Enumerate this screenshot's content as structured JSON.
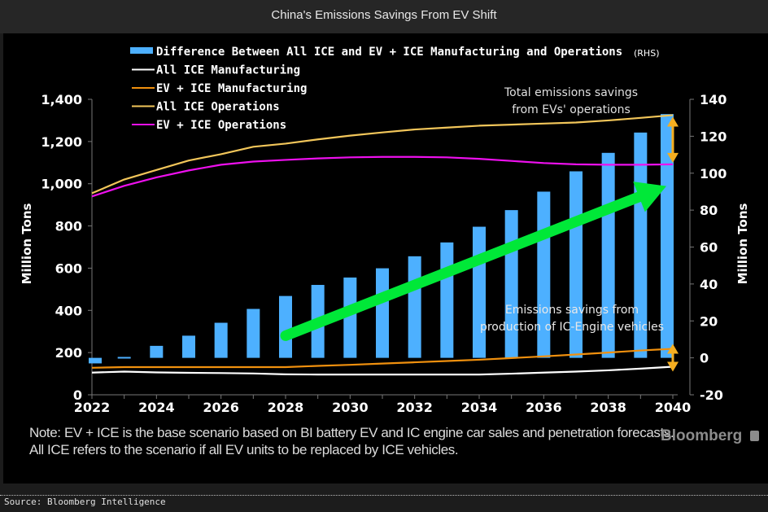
{
  "window": {
    "title": "China's Emissions Savings From EV Shift"
  },
  "footer": {
    "source": "Source: Bloomberg Intelligence",
    "brand": "Bloomberg",
    "brand_icon": "bloomberg-terminal-icon"
  },
  "note": "Note: EV + ICE is the base scenario based on BI battery EV and IC engine car sales and penetration forecasts. All ICE refers to the scenario if all EV units to be replaced by ICE vehicles.",
  "chart_data": {
    "type": "bar+line",
    "title": "China's Emissions Savings From EV Shift",
    "xlabel": "",
    "ylabel_left": "Million Tons",
    "ylabel_right": "Million Tons",
    "ylim_left": [
      0,
      1400
    ],
    "ylim_right": [
      -20,
      140
    ],
    "yticks_left": [
      "0",
      "200",
      "400",
      "600",
      "800",
      "1,000",
      "1,200",
      "1,400"
    ],
    "yticks_left_values": [
      0,
      200,
      400,
      600,
      800,
      1000,
      1200,
      1400
    ],
    "yticks_right": [
      "-20",
      "0",
      "20",
      "40",
      "60",
      "80",
      "100",
      "120",
      "140"
    ],
    "yticks_right_values": [
      -20,
      0,
      20,
      40,
      60,
      80,
      100,
      120,
      140
    ],
    "x": [
      2022,
      2023,
      2024,
      2025,
      2026,
      2027,
      2028,
      2029,
      2030,
      2031,
      2032,
      2033,
      2034,
      2035,
      2036,
      2037,
      2038,
      2039,
      2040
    ],
    "xtick_labels": [
      "2022",
      "2024",
      "2026",
      "2028",
      "2030",
      "2032",
      "2034",
      "2036",
      "2038",
      "2040"
    ],
    "legend_position": "top-left",
    "grid": false,
    "series": [
      {
        "name": "Difference Between All ICE and EV + ICE Manufacturing and Operations",
        "suffix": "(RHS)",
        "type": "bar",
        "axis": "right",
        "color": "#4db0ff",
        "values": [
          -3,
          0.5,
          6.5,
          12,
          19,
          26.5,
          33.5,
          39.5,
          43.5,
          48.5,
          55,
          62.5,
          71,
          80,
          90,
          101,
          111,
          122,
          132
        ]
      },
      {
        "name": "All ICE Manufacturing",
        "type": "line",
        "axis": "left",
        "color": "#ffffff",
        "values": [
          105,
          110,
          106,
          104,
          103,
          101,
          97,
          96,
          96,
          96,
          96,
          96,
          96,
          100,
          105,
          110,
          116,
          124,
          133
        ]
      },
      {
        "name": "EV + ICE Manufacturing",
        "type": "line",
        "axis": "left",
        "color": "#f0900e",
        "values": [
          128,
          131,
          131,
          131,
          131,
          131,
          131,
          137,
          142,
          148,
          154,
          160,
          166,
          174,
          182,
          191,
          200,
          210,
          218
        ]
      },
      {
        "name": "All ICE Operations",
        "type": "line",
        "axis": "left",
        "color": "#f2c65a",
        "values": [
          955,
          1020,
          1065,
          1110,
          1140,
          1175,
          1190,
          1210,
          1228,
          1243,
          1257,
          1266,
          1275,
          1280,
          1285,
          1290,
          1300,
          1312,
          1325
        ]
      },
      {
        "name": "EV + ICE Operations",
        "type": "line",
        "axis": "left",
        "color": "#ee10ee",
        "values": [
          940,
          990,
          1030,
          1063,
          1090,
          1105,
          1113,
          1120,
          1125,
          1127,
          1127,
          1125,
          1118,
          1108,
          1098,
          1092,
          1090,
          1090,
          1092
        ]
      }
    ],
    "annotations": [
      {
        "text_lines": [
          "Total emissions savings",
          "from EVs' operations"
        ],
        "type": "double-arrow",
        "color": "#f5ae20",
        "at_x": 2040,
        "between": [
          "All ICE Operations",
          "EV + ICE Operations"
        ]
      },
      {
        "text_lines": [
          "Emissions savings from",
          "production of IC-Engine vehicles"
        ],
        "type": "double-arrow",
        "color": "#f5ae20",
        "at_x": 2040,
        "between": [
          "EV + ICE Manufacturing",
          "All ICE Manufacturing"
        ]
      },
      {
        "type": "trend-arrow",
        "color": "#00e838",
        "from": [
          2028,
          12
        ],
        "to": [
          2039.9,
          93
        ],
        "axis": "right"
      }
    ]
  }
}
